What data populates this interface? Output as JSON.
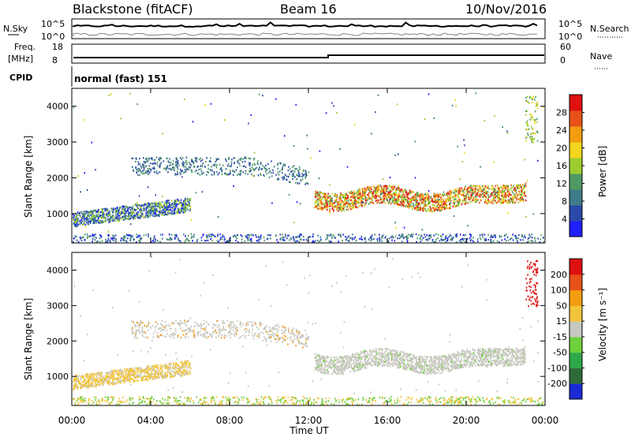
{
  "header": {
    "station": "Blackstone (fitACF)",
    "beam": "Beam 16",
    "date": "10/Nov/2016"
  },
  "top_panels": {
    "nsky_label": "N.Sky",
    "nsearch_label": "N.Search",
    "nsky_ticks": [
      "10^5",
      "10^0"
    ],
    "nsearch_ticks": [
      "10^5",
      "10^0"
    ],
    "freq_label_line1": "Freq.",
    "freq_label_line2": "[MHz]",
    "freq_ticks": [
      "18",
      "8"
    ],
    "nave_label": "Nave",
    "nave_ticks": [
      "60",
      "0"
    ],
    "cpid_label": "CPID",
    "cpid_value": "normal (fast) 151"
  },
  "chart_data": [
    {
      "type": "heatmap",
      "title": "",
      "xlabel": "",
      "ylabel": "Slant Range [km]",
      "xlim": [
        "00:00",
        "24:00"
      ],
      "ylim": [
        180,
        4500
      ],
      "ytick_labels": [
        "1000",
        "2000",
        "3000",
        "4000"
      ],
      "colorbar_label": "Power [dB]",
      "colorbar_ticks": [
        "4",
        "8",
        "12",
        "16",
        "20",
        "24",
        "28"
      ],
      "colorbar_colors": [
        "#1f1fff",
        "#2b4aa8",
        "#3f7c8a",
        "#4f9a64",
        "#9dcc2e",
        "#f2d51c",
        "#f39c12",
        "#e8521a",
        "#e01010"
      ]
    },
    {
      "type": "heatmap",
      "title": "",
      "xlabel": "Time UT",
      "ylabel": "Slant Range [km]",
      "xlim": [
        "00:00",
        "24:00"
      ],
      "ylim": [
        180,
        4500
      ],
      "xtick_labels": [
        "00:00",
        "04:00",
        "08:00",
        "12:00",
        "16:00",
        "20:00",
        "00:00"
      ],
      "ytick_labels": [
        "1000",
        "2000",
        "3000",
        "4000"
      ],
      "colorbar_label": "Velocity [m s⁻¹]",
      "colorbar_ticks": [
        "200",
        "100",
        "50",
        "15",
        "-15",
        "-50",
        "-100",
        "-200"
      ],
      "colorbar_colors": [
        "#1a2bd6",
        "#2f6b3a",
        "#2fa84a",
        "#6ed03a",
        "#c8c8c0",
        "#f2c43a",
        "#f39c12",
        "#e8521a",
        "#e01010"
      ]
    }
  ]
}
